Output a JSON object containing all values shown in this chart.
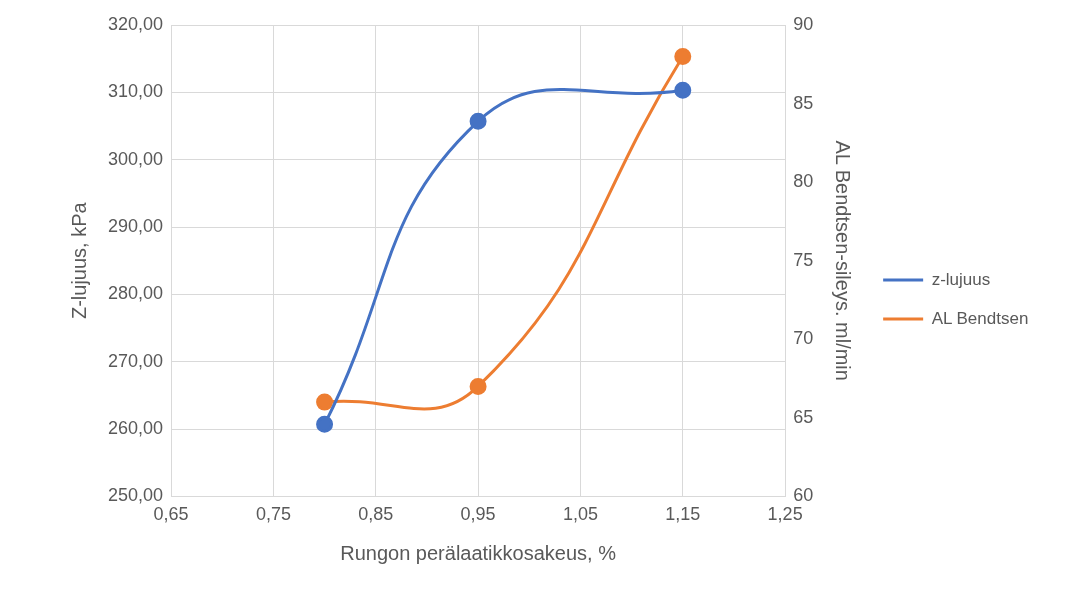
{
  "chart_data": {
    "type": "line",
    "xlabel": "Rungon perälaatikkosakeus, %",
    "ylabel": "Z-lujuus, kPa",
    "y2label": "AL Bendtsen-sileys. ml/min",
    "x": [
      0.8,
      0.95,
      1.15
    ],
    "series": [
      {
        "name": "z-lujuus",
        "color": "#4472c4",
        "values": [
          260.7,
          305.7,
          310.3
        ]
      },
      {
        "name": "AL Bendtsen",
        "color": "#ed7d31",
        "values": [
          66,
          67,
          88
        ],
        "axis": "y2"
      }
    ],
    "xlim": [
      0.65,
      1.25
    ],
    "xticks": [
      {
        "value": 0.65,
        "label": "0,65"
      },
      {
        "value": 0.75,
        "label": "0,75"
      },
      {
        "value": 0.85,
        "label": "0,85"
      },
      {
        "value": 0.95,
        "label": "0,95"
      },
      {
        "value": 1.05,
        "label": "1,05"
      },
      {
        "value": 1.15,
        "label": "1,15"
      },
      {
        "value": 1.25,
        "label": "1,25"
      }
    ],
    "ylim": [
      250,
      320
    ],
    "yticks": [
      {
        "value": 250,
        "label": "250,00"
      },
      {
        "value": 260,
        "label": "260,00"
      },
      {
        "value": 270,
        "label": "270,00"
      },
      {
        "value": 280,
        "label": "280,00"
      },
      {
        "value": 290,
        "label": "290,00"
      },
      {
        "value": 300,
        "label": "300,00"
      },
      {
        "value": 310,
        "label": "310,00"
      },
      {
        "value": 320,
        "label": "320,00"
      }
    ],
    "y2lim": [
      60,
      90
    ],
    "y2ticks": [
      60,
      65,
      70,
      75,
      80,
      85,
      90
    ],
    "grid": true,
    "legend": "right",
    "marker": "circle",
    "line_style": "solid"
  }
}
